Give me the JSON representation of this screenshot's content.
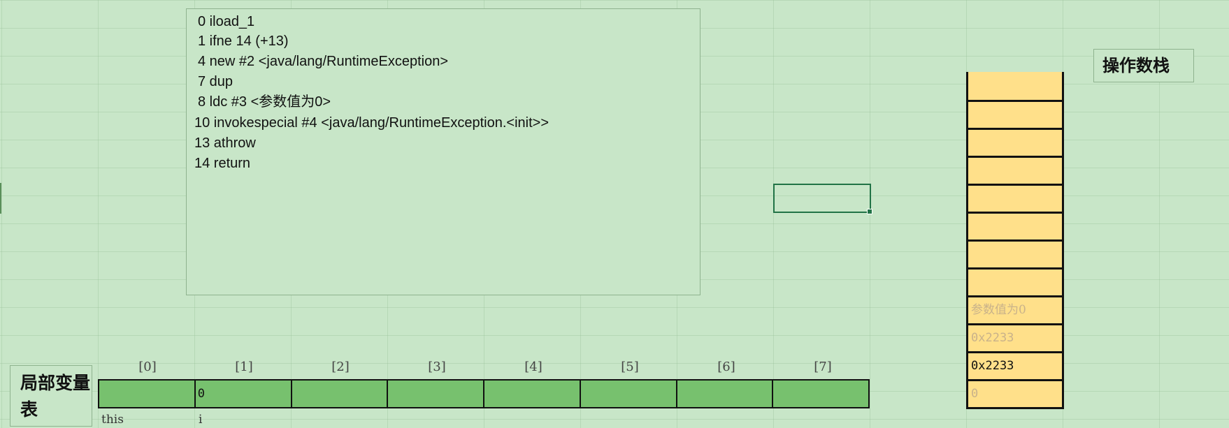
{
  "bytecode": {
    "lines": [
      "0 iload_1",
      "1 ifne 14 (+13)",
      "4 new #2 <java/lang/RuntimeException>",
      "7 dup",
      "8 ldc #3 <参数值为0>",
      "10 invokespecial #4 <java/lang/RuntimeException.<init>>",
      "13 athrow",
      "14 return"
    ]
  },
  "operand_stack": {
    "title": "操作数栈",
    "slots_top_to_bottom": [
      "",
      "",
      "",
      "",
      "",
      "",
      "",
      "",
      "参数值为0",
      "0x2233",
      "0x2233",
      "0"
    ]
  },
  "local_variables": {
    "title": "局部变量表",
    "indices": [
      "[0]",
      "[1]",
      "[2]",
      "[3]",
      "[4]",
      "[5]",
      "[6]",
      "[7]"
    ],
    "values": [
      "",
      "0",
      "",
      "",
      "",
      "",
      "",
      ""
    ],
    "names": [
      "this",
      "i"
    ]
  },
  "colors": {
    "background": "#c8e6c8",
    "stack_fill": "#ffe08a",
    "locals_fill": "#77c16e",
    "selection": "#217346"
  }
}
